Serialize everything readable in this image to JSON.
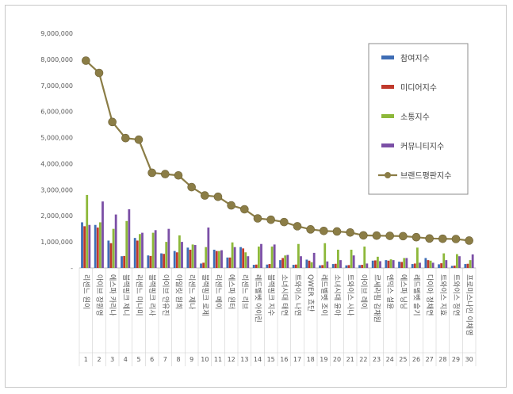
{
  "chart_data": {
    "type": "bar",
    "title": "",
    "xlabel": "",
    "ylabel": "",
    "ylim": [
      0,
      9000000
    ],
    "y_ticks": [
      "9,000,000",
      "8,000,000",
      "7,000,000",
      "6,000,000",
      "5,000,000",
      "4,000,000",
      "3,000,000",
      "2,000,000",
      "1,000,000",
      "-"
    ],
    "y_tick_values": [
      9000000,
      8000000,
      7000000,
      6000000,
      5000000,
      4000000,
      3000000,
      2000000,
      1000000,
      0
    ],
    "categories": [
      "리센느 원이",
      "아이브 장원영",
      "에스파 카리나",
      "블랙핑크 제니",
      "리센느 미나미",
      "블랙핑크 리사",
      "아이브 안유진",
      "아일릿 원희",
      "리센느 제나",
      "블랙핑크 로제",
      "리센느 메이",
      "에스파 윈터",
      "리센느 리브",
      "레드벨벳 아이린",
      "블랙핑크 지수",
      "소녀시대 태연",
      "트와이스 나연",
      "QWER 쵸단",
      "레드벨벳 조이",
      "소녀시대 윤아",
      "트와이스 사나",
      "아이브 레이",
      "르세라핌 김채원",
      "엔믹스 설윤",
      "에스파 닝닝",
      "레드벨벳 슬기",
      "다이아 정채연",
      "트와이스 지효",
      "트와이스 정연",
      "프로미스나인 이채영"
    ],
    "ranks": [
      "1",
      "2",
      "3",
      "4",
      "5",
      "6",
      "7",
      "8",
      "9",
      "10",
      "11",
      "12",
      "13",
      "14",
      "15",
      "16",
      "17",
      "18",
      "19",
      "20",
      "21",
      "22",
      "23",
      "24",
      "25",
      "26",
      "27",
      "28",
      "29",
      "30"
    ],
    "series": [
      {
        "name": "참여지수",
        "kind": "bar",
        "color": "#3F6DB5",
        "values": [
          1750000,
          1650000,
          1050000,
          450000,
          1150000,
          480000,
          560000,
          650000,
          780000,
          170000,
          700000,
          400000,
          800000,
          120000,
          130000,
          300000,
          120000,
          320000,
          100000,
          150000,
          100000,
          110000,
          280000,
          300000,
          240000,
          150000,
          380000,
          140000,
          80000,
          150000
        ]
      },
      {
        "name": "미디어지수",
        "kind": "bar",
        "color": "#C0392B",
        "values": [
          1600000,
          1550000,
          950000,
          460000,
          1050000,
          460000,
          540000,
          600000,
          700000,
          200000,
          650000,
          400000,
          750000,
          130000,
          150000,
          380000,
          130000,
          280000,
          110000,
          160000,
          110000,
          120000,
          290000,
          280000,
          230000,
          170000,
          300000,
          180000,
          90000,
          160000
        ]
      },
      {
        "name": "소통지수",
        "kind": "bar",
        "color": "#8DB83A",
        "values": [
          2800000,
          1750000,
          1500000,
          1800000,
          1300000,
          1350000,
          1000000,
          1250000,
          900000,
          800000,
          650000,
          980000,
          600000,
          820000,
          820000,
          480000,
          920000,
          220000,
          950000,
          700000,
          700000,
          820000,
          430000,
          330000,
          380000,
          780000,
          280000,
          560000,
          530000,
          300000
        ]
      },
      {
        "name": "커뮤니티지수",
        "kind": "bar",
        "color": "#7B4FA6",
        "values": [
          1650000,
          2550000,
          2050000,
          2250000,
          1350000,
          1450000,
          1500000,
          1000000,
          880000,
          1550000,
          680000,
          800000,
          450000,
          920000,
          900000,
          500000,
          450000,
          580000,
          250000,
          300000,
          480000,
          170000,
          260000,
          300000,
          380000,
          200000,
          200000,
          300000,
          450000,
          520000
        ]
      },
      {
        "name": "브랜드평판지수",
        "kind": "line",
        "color": "#8B7D46",
        "values": [
          7950000,
          7480000,
          5600000,
          4980000,
          4920000,
          3650000,
          3600000,
          3550000,
          3100000,
          2780000,
          2730000,
          2400000,
          2250000,
          1900000,
          1850000,
          1760000,
          1600000,
          1480000,
          1420000,
          1400000,
          1360000,
          1250000,
          1240000,
          1230000,
          1220000,
          1180000,
          1130000,
          1120000,
          1110000,
          1050000
        ]
      }
    ],
    "legend_position": "right",
    "grid": false
  }
}
